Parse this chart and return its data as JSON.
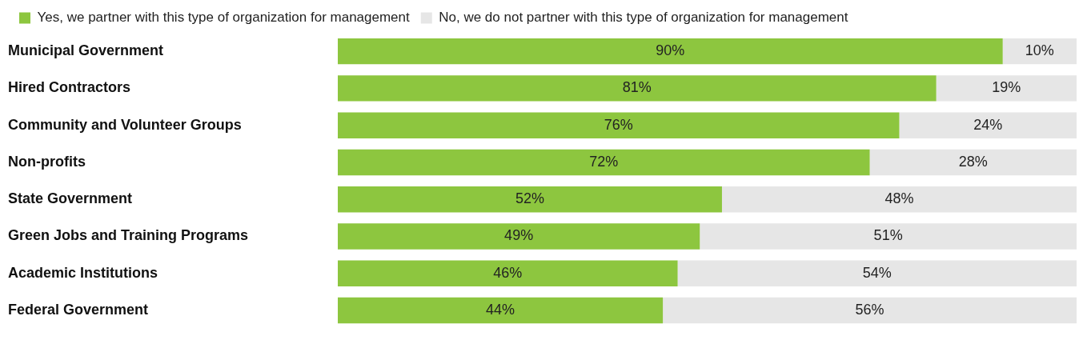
{
  "chart_data": {
    "type": "bar",
    "orientation": "horizontal",
    "stacked": true,
    "categories": [
      "Municipal Government",
      "Hired Contractors",
      "Community and Volunteer Groups",
      "Non-profits",
      "State Government",
      "Green Jobs and Training Programs",
      "Academic Institutions",
      "Federal Government"
    ],
    "series": [
      {
        "name": "Yes, we partner with this type of organization for management",
        "color": "#8dc63f",
        "values": [
          90,
          81,
          76,
          72,
          52,
          49,
          46,
          44
        ],
        "value_labels": [
          "90%",
          "81%",
          "76%",
          "72%",
          "52%",
          "49%",
          "46%",
          "44%"
        ]
      },
      {
        "name": "No, we do not partner with this type of organization for management",
        "color": "#e6e6e6",
        "values": [
          10,
          19,
          24,
          28,
          48,
          51,
          54,
          56
        ],
        "value_labels": [
          "10%",
          "19%",
          "24%",
          "28%",
          "48%",
          "51%",
          "54%",
          "56%"
        ]
      }
    ],
    "legend": "top left",
    "tick_labels": "y"
  }
}
